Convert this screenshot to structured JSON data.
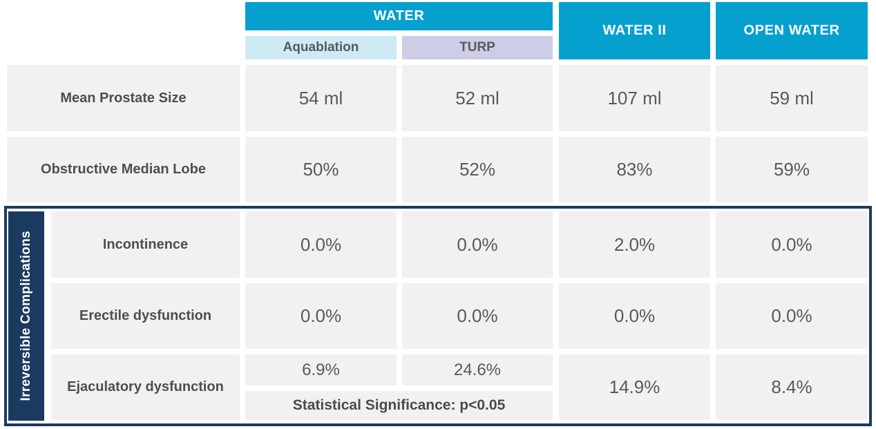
{
  "colors": {
    "header_cyan": "#06A0CE",
    "aquablation_header_bg": "#CEEAF5",
    "turp_header_bg": "#CECDE8",
    "cell_gray": "#F1F1F2",
    "section_navy": "#1B3A60",
    "value_text_gray": "#595959",
    "header_text_white": "#FFFFFF"
  },
  "chart_data": {
    "type": "table",
    "title": "",
    "column_groups": [
      {
        "label": "WATER",
        "columns": [
          "Aquablation",
          "TURP"
        ]
      },
      {
        "label": "WATER II",
        "columns": [
          "WATER II"
        ]
      },
      {
        "label": "OPEN WATER",
        "columns": [
          "OPEN WATER"
        ]
      }
    ],
    "columns": [
      "Aquablation",
      "TURP",
      "WATER II",
      "OPEN WATER"
    ],
    "section_label": "Irreversible Complications",
    "rows": [
      {
        "label": "Mean Prostate Size",
        "section": null,
        "values": [
          "54 ml",
          "52 ml",
          "107 ml",
          "59 ml"
        ]
      },
      {
        "label": "Obstructive Median Lobe",
        "section": null,
        "values": [
          "50%",
          "52%",
          "83%",
          "59%"
        ]
      },
      {
        "label": "Incontinence",
        "section": "Irreversible Complications",
        "values": [
          "0.0%",
          "0.0%",
          "2.0%",
          "0.0%"
        ]
      },
      {
        "label": "Erectile dysfunction",
        "section": "Irreversible Complications",
        "values": [
          "0.0%",
          "0.0%",
          "0.0%",
          "0.0%"
        ]
      },
      {
        "label": "Ejaculatory dysfunction",
        "section": "Irreversible Complications",
        "values": [
          "6.9%",
          "24.6%",
          "14.9%",
          "8.4%"
        ],
        "note": "Statistical Significance: p<0.05",
        "note_spans": [
          "Aquablation",
          "TURP"
        ]
      }
    ]
  }
}
